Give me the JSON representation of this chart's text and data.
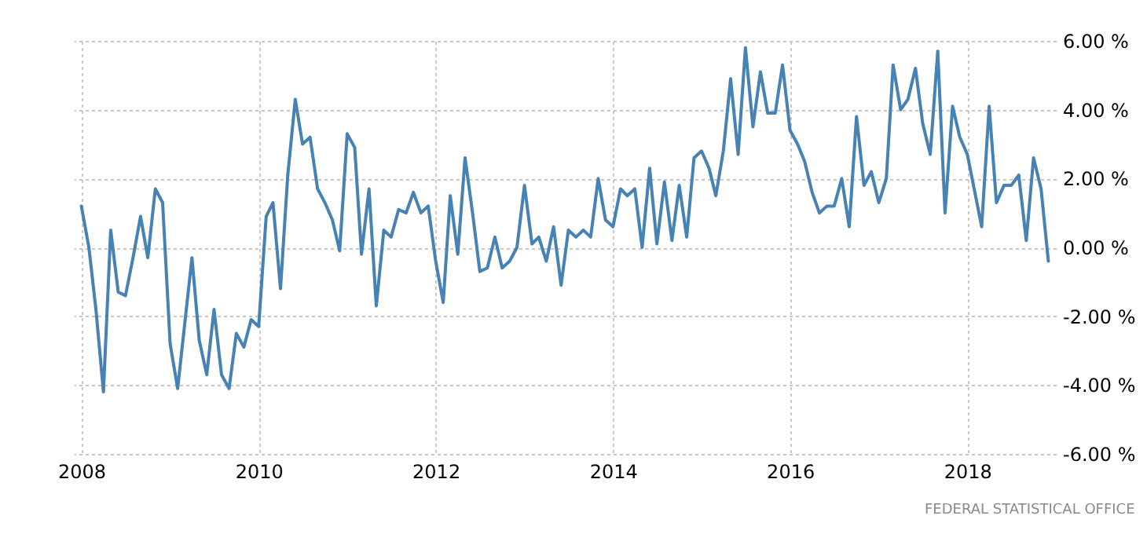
{
  "chart_data": {
    "type": "line",
    "x": [
      "2008-01",
      "2008-02",
      "2008-03",
      "2008-04",
      "2008-05",
      "2008-06",
      "2008-07",
      "2008-08",
      "2008-09",
      "2008-10",
      "2008-11",
      "2008-12",
      "2009-01",
      "2009-02",
      "2009-03",
      "2009-04",
      "2009-05",
      "2009-06",
      "2009-07",
      "2009-08",
      "2009-09",
      "2009-10",
      "2009-11",
      "2009-12",
      "2010-01",
      "2010-02",
      "2010-03",
      "2010-04",
      "2010-05",
      "2010-06",
      "2010-07",
      "2010-08",
      "2010-09",
      "2010-10",
      "2010-11",
      "2010-12",
      "2011-01",
      "2011-02",
      "2011-03",
      "2011-04",
      "2011-05",
      "2011-06",
      "2011-07",
      "2011-08",
      "2011-09",
      "2011-10",
      "2011-11",
      "2011-12",
      "2012-01",
      "2012-02",
      "2012-03",
      "2012-04",
      "2012-05",
      "2012-06",
      "2012-07",
      "2012-08",
      "2012-09",
      "2012-10",
      "2012-11",
      "2012-12",
      "2013-01",
      "2013-02",
      "2013-03",
      "2013-04",
      "2013-05",
      "2013-06",
      "2013-07",
      "2013-08",
      "2013-09",
      "2013-10",
      "2013-11",
      "2013-12",
      "2014-01",
      "2014-02",
      "2014-03",
      "2014-04",
      "2014-05",
      "2014-06",
      "2014-07",
      "2014-08",
      "2014-09",
      "2014-10",
      "2014-11",
      "2014-12",
      "2015-01",
      "2015-02",
      "2015-03",
      "2015-04",
      "2015-05",
      "2015-06",
      "2015-07",
      "2015-08",
      "2015-09",
      "2015-10",
      "2015-11",
      "2015-12",
      "2016-01",
      "2016-02",
      "2016-03",
      "2016-04",
      "2016-05",
      "2016-06",
      "2016-07",
      "2016-08",
      "2016-09",
      "2016-10",
      "2016-11",
      "2016-12",
      "2017-01",
      "2017-02",
      "2017-03",
      "2017-04",
      "2017-05",
      "2017-06",
      "2017-07",
      "2017-08",
      "2017-09",
      "2017-10",
      "2017-11",
      "2017-12",
      "2018-01",
      "2018-02",
      "2018-03",
      "2018-04",
      "2018-05",
      "2018-06",
      "2018-07",
      "2018-08",
      "2018-09",
      "2018-10",
      "2018-11",
      "2018-12"
    ],
    "series": [
      {
        "color": "#4682b4",
        "values": [
          1.2,
          0.0,
          -1.8,
          -4.2,
          0.5,
          -1.3,
          -1.4,
          -0.3,
          0.9,
          -0.3,
          1.7,
          1.3,
          -2.8,
          -4.1,
          -2.3,
          -0.3,
          -2.7,
          -3.7,
          -1.8,
          -3.7,
          -4.1,
          -2.5,
          -2.9,
          -2.1,
          -2.3,
          0.9,
          1.3,
          -1.2,
          2.1,
          4.3,
          3.0,
          3.2,
          1.7,
          1.3,
          0.8,
          -0.1,
          3.3,
          2.9,
          -0.2,
          1.7,
          -1.7,
          0.5,
          0.3,
          1.1,
          1.0,
          1.6,
          1.0,
          1.2,
          -0.4,
          -1.6,
          1.5,
          -0.2,
          2.6,
          1.0,
          -0.7,
          -0.6,
          0.3,
          -0.6,
          -0.4,
          0.0,
          1.8,
          0.1,
          0.3,
          -0.4,
          0.6,
          -1.1,
          0.5,
          0.3,
          0.5,
          0.3,
          2.0,
          0.8,
          0.6,
          1.7,
          1.5,
          1.7,
          0.0,
          2.3,
          0.1,
          1.9,
          0.2,
          1.8,
          0.3,
          2.6,
          2.8,
          2.3,
          1.5,
          2.8,
          4.9,
          2.7,
          5.8,
          3.5,
          5.1,
          3.9,
          3.9,
          5.3,
          3.4,
          3.0,
          2.5,
          1.6,
          1.0,
          1.2,
          1.2,
          2.0,
          0.6,
          3.8,
          1.8,
          2.2,
          1.3,
          2.0,
          5.3,
          4.0,
          4.3,
          5.2,
          3.6,
          2.7,
          5.7,
          1.0,
          4.1,
          3.2,
          2.7,
          1.6,
          0.6,
          4.1,
          1.3,
          1.8,
          1.8,
          2.1,
          0.2,
          2.6,
          1.7,
          -0.4
        ]
      }
    ],
    "xlim": [
      "2007-12",
      "2019-01"
    ],
    "xticks": [
      {
        "value": "2008",
        "label": "2008"
      },
      {
        "value": "2010",
        "label": "2010"
      },
      {
        "value": "2012",
        "label": "2012"
      },
      {
        "value": "2014",
        "label": "2014"
      },
      {
        "value": "2016",
        "label": "2016"
      },
      {
        "value": "2018",
        "label": "2018"
      }
    ],
    "ylim": [
      -6,
      6
    ],
    "yticks": [
      {
        "value": -6,
        "label": "-6.00 %"
      },
      {
        "value": -4,
        "label": "-4.00 %"
      },
      {
        "value": -2,
        "label": "-2.00 %"
      },
      {
        "value": 0,
        "label": "0.00 %"
      },
      {
        "value": 2,
        "label": "2.00 %"
      },
      {
        "value": 4,
        "label": "4.00 %"
      },
      {
        "value": 6,
        "label": "6.00 %"
      }
    ],
    "grid": true,
    "line_style": "solid",
    "annotations": [
      "FEDERAL STATISTICAL OFFICE"
    ]
  }
}
